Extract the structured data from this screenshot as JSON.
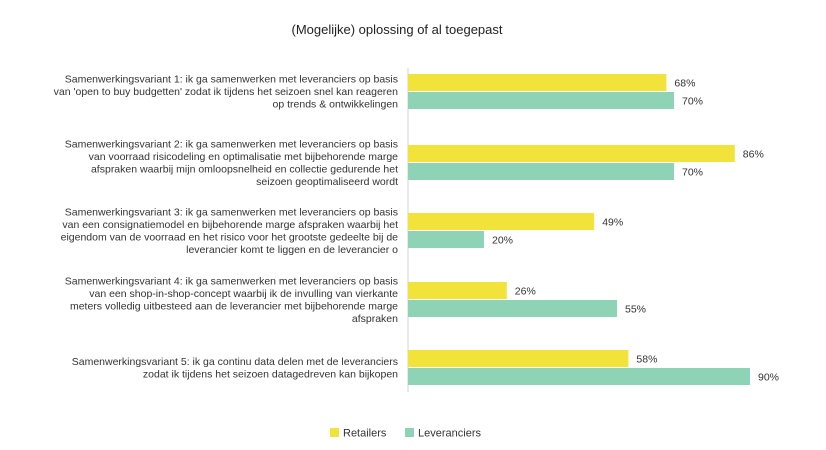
{
  "chart_data": {
    "type": "bar",
    "orientation": "horizontal",
    "title": "(Mogelijke) oplossing of al toegepast",
    "categories": [
      [
        "Samenwerkingsvariant 1: ik ga samenwerken met leveranciers op basis",
        "van 'open to buy budgetten' zodat ik tijdens het seizoen snel kan reageren",
        "op trends & ontwikkelingen"
      ],
      [
        "Samenwerkingsvariant 2: ik ga samenwerken met leveranciers op basis",
        "van voorraad risicodeling en optimalisatie met bijbehorende marge",
        "afspraken waarbij mijn omloopsnelheid en collectie gedurende het",
        "seizoen geoptimaliseerd wordt"
      ],
      [
        "Samenwerkingsvariant 3: ik ga samenwerken met leveranciers op basis",
        "van een consignatiemodel en bijbehorende marge afspraken waarbij het",
        "eigendom van de voorraad en het risico voor het grootste gedeelte bij de",
        "leverancier komt te liggen en de leverancier o"
      ],
      [
        "Samenwerkingsvariant 4: ik ga samenwerken met leveranciers op basis",
        "van een shop-in-shop-concept waarbij ik de invulling van vierkante",
        "meters volledig uitbesteed aan de leverancier met bijbehorende marge",
        "afspraken"
      ],
      [
        "Samenwerkingsvariant 5: ik ga continu data delen met de leveranciers",
        "zodat ik tijdens het seizoen datagedreven kan bijkopen"
      ]
    ],
    "series": [
      {
        "name": "Retailers",
        "color": "#f2e33a",
        "values": [
          68,
          86,
          49,
          26,
          58
        ]
      },
      {
        "name": "Leveranciers",
        "color": "#8fd3b6",
        "values": [
          70,
          70,
          20,
          55,
          90
        ]
      }
    ],
    "value_suffix": "%",
    "xlim": [
      0,
      100
    ],
    "grid": false,
    "legend_position": "bottom"
  }
}
